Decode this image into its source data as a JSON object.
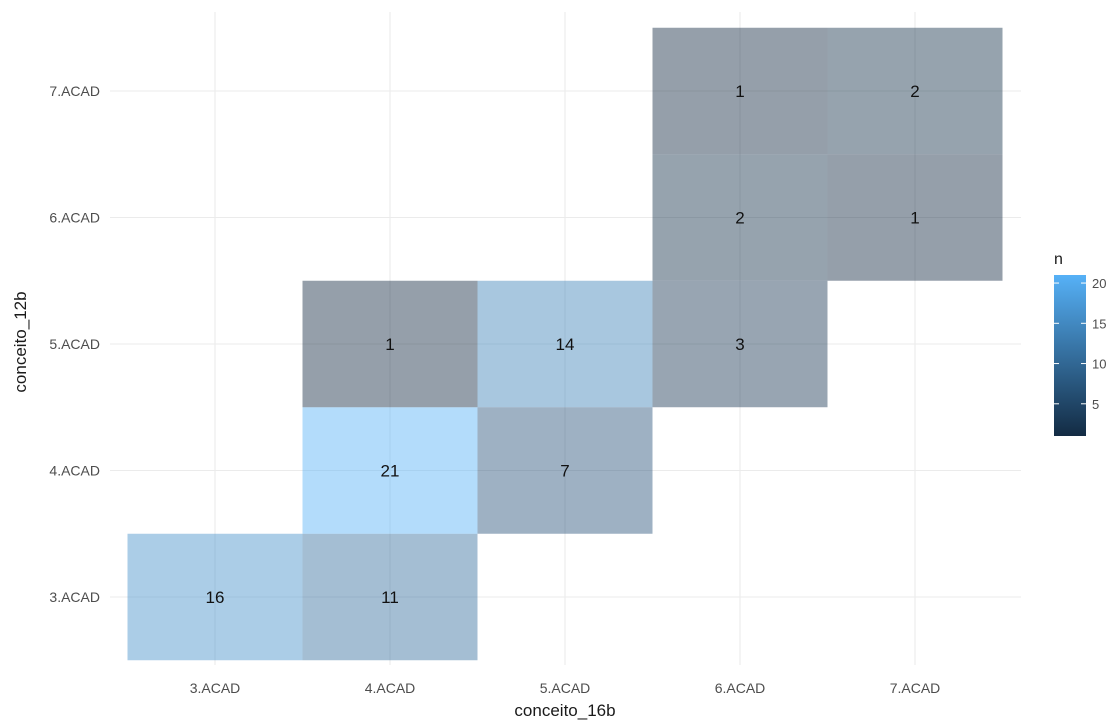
{
  "chart_data": {
    "type": "heatmap",
    "title": "",
    "xlabel": "conceito_16b",
    "ylabel": "conceito_12b",
    "x_categories": [
      "3.ACAD",
      "4.ACAD",
      "5.ACAD",
      "6.ACAD",
      "7.ACAD"
    ],
    "y_categories": [
      "3.ACAD",
      "4.ACAD",
      "5.ACAD",
      "6.ACAD",
      "7.ACAD"
    ],
    "cells": [
      {
        "x": "3.ACAD",
        "y": "3.ACAD",
        "n": 16
      },
      {
        "x": "4.ACAD",
        "y": "3.ACAD",
        "n": 11
      },
      {
        "x": "4.ACAD",
        "y": "4.ACAD",
        "n": 21
      },
      {
        "x": "4.ACAD",
        "y": "5.ACAD",
        "n": 1
      },
      {
        "x": "5.ACAD",
        "y": "4.ACAD",
        "n": 7
      },
      {
        "x": "5.ACAD",
        "y": "5.ACAD",
        "n": 14
      },
      {
        "x": "6.ACAD",
        "y": "5.ACAD",
        "n": 3
      },
      {
        "x": "6.ACAD",
        "y": "6.ACAD",
        "n": 2
      },
      {
        "x": "6.ACAD",
        "y": "7.ACAD",
        "n": 1
      },
      {
        "x": "7.ACAD",
        "y": "6.ACAD",
        "n": 1
      },
      {
        "x": "7.ACAD",
        "y": "7.ACAD",
        "n": 2
      }
    ],
    "fill_opacity": 0.45,
    "grid": true,
    "legend": {
      "title": "n",
      "position": "right",
      "ticks": [
        5,
        10,
        15,
        20
      ],
      "range": [
        1,
        21
      ],
      "color_low": "#132B43",
      "color_high": "#56B1F7"
    }
  }
}
